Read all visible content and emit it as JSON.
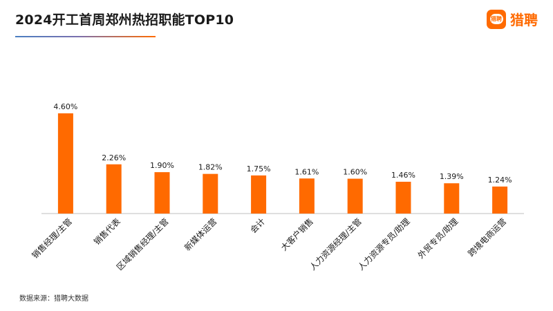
{
  "header": {
    "title": "2024开工首周郑州热招职能TOP10",
    "logo_mark_text": "猎聘",
    "logo_text": "猎聘",
    "brand_color": "#ff6a00"
  },
  "chart_data": {
    "type": "bar",
    "categories": [
      "销售经理/主管",
      "销售代表",
      "区域销售经理/主管",
      "新媒体运营",
      "会计",
      "大客户销售",
      "人力资源经理/主管",
      "人力资源专员/助理",
      "外贸专员/助理",
      "跨境电商运营"
    ],
    "values": [
      4.6,
      2.26,
      1.9,
      1.82,
      1.75,
      1.61,
      1.6,
      1.46,
      1.39,
      1.24
    ],
    "labels": [
      "4.60%",
      "2.26%",
      "1.90%",
      "1.82%",
      "1.75%",
      "1.61%",
      "1.60%",
      "1.46%",
      "1.39%",
      "1.24%"
    ],
    "unit": "%",
    "title": "2024开工首周郑州热招职能TOP10",
    "xlabel": "",
    "ylabel": "",
    "grid": false,
    "color": "#ff6a00"
  },
  "footnote": "数据来源：猎聘大数据"
}
